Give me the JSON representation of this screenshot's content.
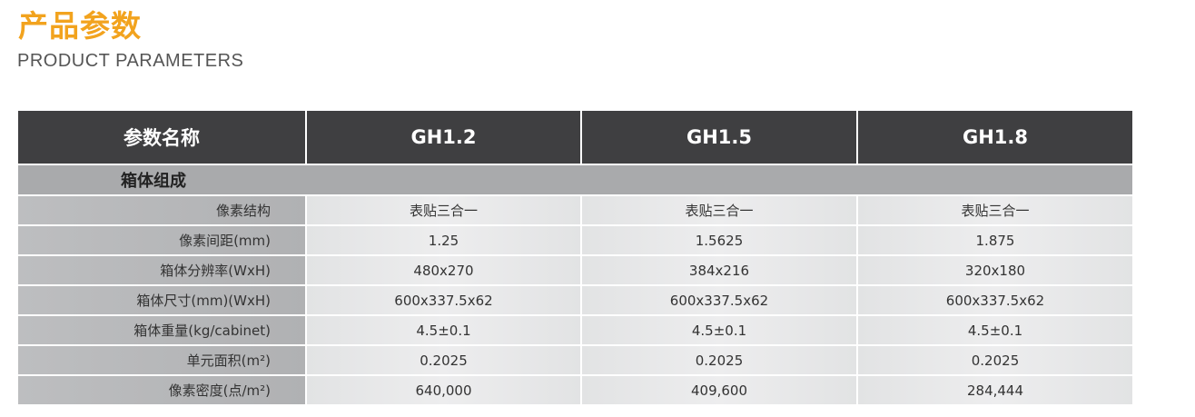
{
  "header": {
    "title": "产品参数",
    "subtitle": "PRODUCT PARAMETERS",
    "accent_color": "#f2a31e"
  },
  "table": {
    "columns": [
      "参数名称",
      "GH1.2",
      "GH1.5",
      "GH1.8"
    ],
    "section": "箱体组成",
    "rows": [
      {
        "label": "像素结构",
        "values": [
          "表贴三合一",
          "表贴三合一",
          "表贴三合一"
        ]
      },
      {
        "label": "像素间距(mm)",
        "values": [
          "1.25",
          "1.5625",
          "1.875"
        ]
      },
      {
        "label": "箱体分辨率(WxH)",
        "values": [
          "480x270",
          "384x216",
          "320x180"
        ]
      },
      {
        "label": "箱体尺寸(mm)(WxH)",
        "values": [
          "600x337.5x62",
          "600x337.5x62",
          "600x337.5x62"
        ]
      },
      {
        "label": "箱体重量(kg/cabinet)",
        "values": [
          "4.5±0.1",
          "4.5±0.1",
          "4.5±0.1"
        ]
      },
      {
        "label": "单元面积(m²)",
        "values": [
          "0.2025",
          "0.2025",
          "0.2025"
        ]
      },
      {
        "label": "像素密度(点/m²)",
        "values": [
          "640,000",
          "409,600",
          "284,444"
        ]
      }
    ]
  }
}
